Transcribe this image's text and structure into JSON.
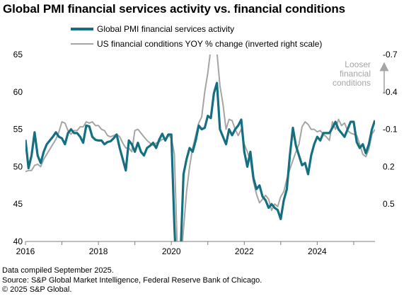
{
  "title": "Global PMI financial services activity vs. financial conditions",
  "footnotes": [
    "Data compiled September 2025.",
    "Source: S&P Global Market Intelligence, Federal Reserve Bank of Chicago.",
    "© 2025 S&P Global."
  ],
  "colors": {
    "primary": "#147081",
    "secondary": "#a5a5a5",
    "axis": "#7f7f7f"
  },
  "chart_data": {
    "type": "line",
    "title": "Global PMI financial services activity vs. financial conditions",
    "annotation": "Looser financial conditions",
    "x_axis": {
      "ticks": [
        "2016",
        "2018",
        "2020",
        "2022",
        "2024"
      ],
      "range": [
        "2016-01",
        "2025-08"
      ]
    },
    "y_left": {
      "range": [
        40,
        65
      ],
      "ticks": [
        "40",
        "45",
        "50",
        "55",
        "60",
        "65"
      ]
    },
    "y_right": {
      "inverted": true,
      "range": [
        0.8,
        -0.7
      ],
      "ticks": [
        "0.5",
        "0.2",
        "-0.1",
        "-0.4",
        "-0.7"
      ]
    },
    "series": [
      {
        "name": "Global PMI financial services activity",
        "axis": "left",
        "x": [
          "2016-01",
          "2016-02",
          "2016-03",
          "2016-04",
          "2016-05",
          "2016-06",
          "2016-07",
          "2016-08",
          "2016-09",
          "2016-10",
          "2016-11",
          "2016-12",
          "2017-01",
          "2017-02",
          "2017-03",
          "2017-04",
          "2017-05",
          "2017-06",
          "2017-07",
          "2017-08",
          "2017-09",
          "2017-10",
          "2017-11",
          "2017-12",
          "2018-01",
          "2018-02",
          "2018-03",
          "2018-04",
          "2018-05",
          "2018-06",
          "2018-07",
          "2018-08",
          "2018-09",
          "2018-10",
          "2018-11",
          "2018-12",
          "2019-01",
          "2019-02",
          "2019-03",
          "2019-04",
          "2019-05",
          "2019-06",
          "2019-07",
          "2019-08",
          "2019-09",
          "2019-10",
          "2019-11",
          "2019-12",
          "2020-01",
          "2020-02",
          "2020-03",
          "2020-04",
          "2020-05",
          "2020-06",
          "2020-07",
          "2020-08",
          "2020-09",
          "2020-10",
          "2020-11",
          "2020-12",
          "2021-01",
          "2021-02",
          "2021-03",
          "2021-04",
          "2021-05",
          "2021-06",
          "2021-07",
          "2021-08",
          "2021-09",
          "2021-10",
          "2021-11",
          "2021-12",
          "2022-01",
          "2022-02",
          "2022-03",
          "2022-04",
          "2022-05",
          "2022-06",
          "2022-07",
          "2022-08",
          "2022-09",
          "2022-10",
          "2022-11",
          "2022-12",
          "2023-01",
          "2023-02",
          "2023-03",
          "2023-04",
          "2023-05",
          "2023-06",
          "2023-07",
          "2023-08",
          "2023-09",
          "2023-10",
          "2023-11",
          "2023-12",
          "2024-01",
          "2024-02",
          "2024-03",
          "2024-04",
          "2024-05",
          "2024-06",
          "2024-07",
          "2024-08",
          "2024-09",
          "2024-10",
          "2024-11",
          "2024-12",
          "2025-01",
          "2025-02",
          "2025-03",
          "2025-04",
          "2025-05",
          "2025-06",
          "2025-07",
          "2025-08"
        ],
        "values": [
          53.6,
          49.8,
          51.5,
          54.6,
          51.5,
          50.5,
          52.0,
          53.0,
          53.5,
          54.0,
          54.6,
          54.0,
          53.8,
          53.0,
          54.5,
          55.0,
          54.5,
          54.5,
          54.0,
          53.2,
          55.5,
          55.4,
          54.0,
          53.6,
          53.5,
          53.5,
          53.0,
          53.3,
          53.4,
          53.8,
          54.3,
          52.5,
          51.0,
          49.5,
          53.5,
          53.0,
          52.0,
          53.2,
          52.0,
          51.5,
          52.5,
          52.8,
          53.2,
          52.5,
          53.6,
          54.4,
          53.5,
          54.3,
          54.3,
          42.0,
          33.0,
          38.0,
          49.0,
          51.0,
          52.5,
          52.0,
          53.5,
          55.5,
          55.0,
          55.2,
          56.8,
          56.5,
          59.8,
          61.2,
          55.0,
          54.0,
          53.0,
          55.0,
          54.2,
          55.0,
          55.5,
          56.3,
          52.0,
          50.0,
          52.0,
          48.5,
          47.0,
          47.5,
          46.0,
          45.5,
          44.5,
          45.0,
          44.5,
          44.2,
          43.0,
          45.5,
          47.0,
          51.5,
          55.2,
          52.8,
          51.5,
          50.2,
          50.5,
          49.0,
          51.5,
          53.0,
          54.0,
          53.5,
          54.5,
          54.5,
          54.5,
          55.2,
          56.0,
          55.0,
          54.5,
          54.0,
          55.0,
          56.0,
          56.0,
          53.3,
          52.5,
          53.0,
          51.8,
          53.0,
          55.0,
          56.2
        ]
      },
      {
        "name": "US financial conditions YOY % change (inverted right scale)",
        "axis": "right",
        "x": [
          "2016-01",
          "2016-02",
          "2016-03",
          "2016-04",
          "2016-05",
          "2016-06",
          "2016-07",
          "2016-08",
          "2016-09",
          "2016-10",
          "2016-11",
          "2016-12",
          "2017-01",
          "2017-02",
          "2017-03",
          "2017-04",
          "2017-05",
          "2017-06",
          "2017-07",
          "2017-08",
          "2017-09",
          "2017-10",
          "2017-11",
          "2017-12",
          "2018-01",
          "2018-02",
          "2018-03",
          "2018-04",
          "2018-05",
          "2018-06",
          "2018-07",
          "2018-08",
          "2018-09",
          "2018-10",
          "2018-11",
          "2018-12",
          "2019-01",
          "2019-02",
          "2019-03",
          "2019-04",
          "2019-05",
          "2019-06",
          "2019-07",
          "2019-08",
          "2019-09",
          "2019-10",
          "2019-11",
          "2019-12",
          "2020-01",
          "2020-02",
          "2020-03",
          "2020-04",
          "2020-05",
          "2020-06",
          "2020-07",
          "2020-08",
          "2020-09",
          "2020-10",
          "2020-11",
          "2020-12",
          "2021-01",
          "2021-02",
          "2021-03",
          "2021-04",
          "2021-05",
          "2021-06",
          "2021-07",
          "2021-08",
          "2021-09",
          "2021-10",
          "2021-11",
          "2021-12",
          "2022-01",
          "2022-02",
          "2022-03",
          "2022-04",
          "2022-05",
          "2022-06",
          "2022-07",
          "2022-08",
          "2022-09",
          "2022-10",
          "2022-11",
          "2022-12",
          "2023-01",
          "2023-02",
          "2023-03",
          "2023-04",
          "2023-05",
          "2023-06",
          "2023-07",
          "2023-08",
          "2023-09",
          "2023-10",
          "2023-11",
          "2023-12",
          "2024-01",
          "2024-02",
          "2024-03",
          "2024-04",
          "2024-05",
          "2024-06",
          "2024-07",
          "2024-08",
          "2024-09",
          "2024-10",
          "2024-11",
          "2024-12",
          "2025-01",
          "2025-02",
          "2025-03",
          "2025-04",
          "2025-05",
          "2025-06",
          "2025-07",
          "2025-08"
        ],
        "values": [
          0.24,
          0.23,
          0.23,
          0.19,
          0.18,
          0.2,
          0.14,
          0.1,
          0.06,
          0.02,
          -0.02,
          -0.08,
          -0.16,
          -0.15,
          -0.09,
          -0.06,
          -0.09,
          -0.09,
          -0.12,
          -0.12,
          -0.16,
          -0.15,
          -0.16,
          -0.13,
          -0.13,
          -0.1,
          -0.09,
          -0.05,
          -0.04,
          -0.05,
          -0.06,
          -0.04,
          0.01,
          0.05,
          0.05,
          0.08,
          -0.09,
          -0.1,
          -0.07,
          -0.04,
          -0.01,
          0.01,
          0.03,
          0.01,
          0.0,
          -0.02,
          -0.02,
          -0.05,
          -0.03,
          0.1,
          0.9,
          1.0,
          0.7,
          0.4,
          0.2,
          0.05,
          -0.05,
          -0.15,
          -0.2,
          -0.4,
          -0.55,
          -0.75,
          -0.8,
          -0.72,
          -0.45,
          -0.3,
          -0.1,
          -0.18,
          -0.17,
          -0.1,
          -0.05,
          -0.1,
          0.02,
          0.08,
          0.15,
          0.32,
          0.42,
          0.49,
          0.46,
          0.43,
          0.46,
          0.55,
          0.5,
          0.52,
          0.44,
          0.4,
          0.3,
          0.22,
          0.15,
          0.08,
          0.02,
          -0.12,
          -0.16,
          -0.14,
          -0.1,
          -0.1,
          -0.08,
          -0.09,
          -0.06,
          -0.04,
          -0.01,
          -0.16,
          -0.1,
          -0.18,
          -0.13,
          -0.15,
          -0.09,
          -0.07,
          -0.06,
          -0.05,
          0.02,
          0.1,
          0.12,
          0.06,
          -0.06,
          -0.1
        ]
      }
    ]
  }
}
